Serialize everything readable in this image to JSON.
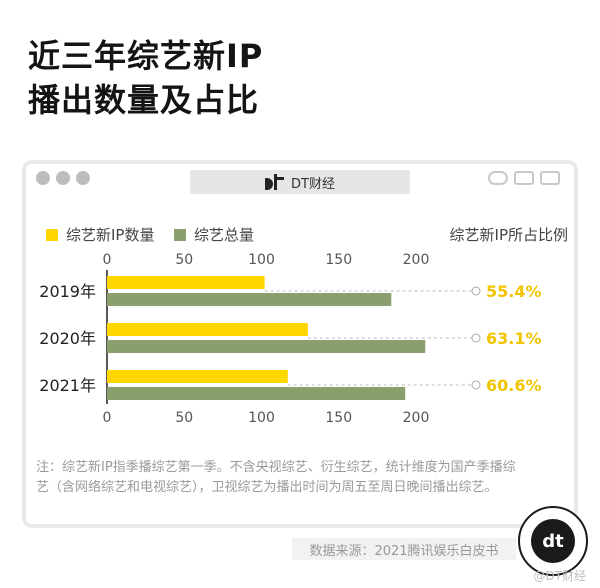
{
  "title_line1": "近三年综艺新IP",
  "title_line2": "播出数量及占比",
  "window": {
    "address_label": "DT财经"
  },
  "legend": {
    "series1": "综艺新IP数量",
    "series2": "综艺总量",
    "right_label": "综艺新IP所占比例"
  },
  "colors": {
    "series1": "#ffd700",
    "series2": "#8a9e6e",
    "pct": "#f2c400"
  },
  "chart_data": {
    "type": "bar",
    "orientation": "horizontal",
    "categories": [
      "2019年",
      "2020年",
      "2021年"
    ],
    "series": [
      {
        "name": "综艺新IP数量",
        "values": [
          102,
          130,
          117
        ]
      },
      {
        "name": "综艺总量",
        "values": [
          184,
          206,
          193
        ]
      }
    ],
    "percent_labels": [
      "55.4%",
      "63.1%",
      "60.6%"
    ],
    "xlim": [
      0,
      200
    ],
    "xticks": [
      0,
      50,
      100,
      150,
      200
    ],
    "grid": false
  },
  "note": "注：综艺新IP指季播综艺第一季。不含央视综艺、衍生综艺，统计维度为国产季播综艺（含网络综艺和电视综艺），卫视综艺为播出时间为周五至周日晚间播出综艺。",
  "source": "数据来源：2021腾讯娱乐白皮书",
  "badge_text": "dt",
  "footer_watermark": "@DT财经"
}
